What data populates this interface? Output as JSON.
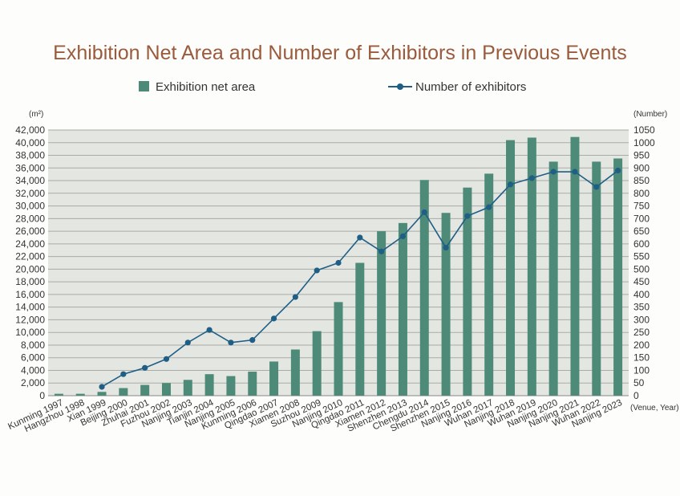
{
  "chart_data": {
    "type": "bar+line",
    "title": "Exhibition Net Area and Number of Exhibitors in Previous Events",
    "y_left_unit": "(m²)",
    "y_right_unit": "(Number)",
    "x_unit": "(Venue, Year)",
    "legend_position": "top",
    "grid": true,
    "colors": {
      "bar": "#4e8a78",
      "line": "#1f5f86",
      "plot_bg": "#e4e6e2",
      "grid": "#a9aba6",
      "title": "#9a5a3c"
    },
    "ylim_left": [
      0,
      42000
    ],
    "ylim_right": [
      0,
      1050
    ],
    "yticks_left": [
      "0",
      "2,000",
      "4,000",
      "6,000",
      "8,000",
      "10,000",
      "12,000",
      "14,000",
      "16,000",
      "18,000",
      "20,000",
      "22,000",
      "24,000",
      "26,000",
      "28,000",
      "30,000",
      "32,000",
      "34,000",
      "36,000",
      "38,000",
      "40,000",
      "42,000"
    ],
    "yticks_right": [
      "0",
      "50",
      "100",
      "150",
      "200",
      "250",
      "300",
      "350",
      "400",
      "450",
      "500",
      "550",
      "600",
      "650",
      "700",
      "750",
      "800",
      "850",
      "900",
      "950",
      "1000",
      "1050"
    ],
    "categories": [
      "Kunming 1997",
      "Hangzhou 1998",
      "Xian 1999",
      "Beijing 2000",
      "Zhuhai 2001",
      "Fuzhou 2002",
      "Nanjing 2003",
      "Tianjin 2004",
      "Nanjing 2005",
      "Kunming 2006",
      "Qingdao 2007",
      "Xiamen 2008",
      "Suzhou 2009",
      "Nanjing 2010",
      "Qingdao 2011",
      "Xiamen 2012",
      "Shenzhen 2013",
      "Chengdu 2014",
      "Shenzhen 2015",
      "Nanjing 2016",
      "Wuhan 2017",
      "Nanjing 2018",
      "Wuhan 2019",
      "Nanjing 2020",
      "Nanjing 2021",
      "Wuhan 2022",
      "Nanjing 2023"
    ],
    "series": [
      {
        "name": "Exhibition net area",
        "type": "bar",
        "axis": "left",
        "values": [
          300,
          300,
          600,
          1200,
          1700,
          2000,
          2500,
          3400,
          3100,
          3800,
          5400,
          7300,
          10200,
          14800,
          21000,
          26000,
          27300,
          34100,
          28900,
          32900,
          35100,
          40400,
          40800,
          37000,
          40900,
          37000,
          37500
        ]
      },
      {
        "name": "Number of exhibitors",
        "type": "line",
        "axis": "right",
        "values": [
          null,
          null,
          35,
          85,
          110,
          145,
          210,
          260,
          210,
          220,
          305,
          390,
          495,
          525,
          625,
          570,
          630,
          725,
          585,
          710,
          745,
          835,
          860,
          885,
          885,
          825,
          890
        ]
      }
    ]
  }
}
